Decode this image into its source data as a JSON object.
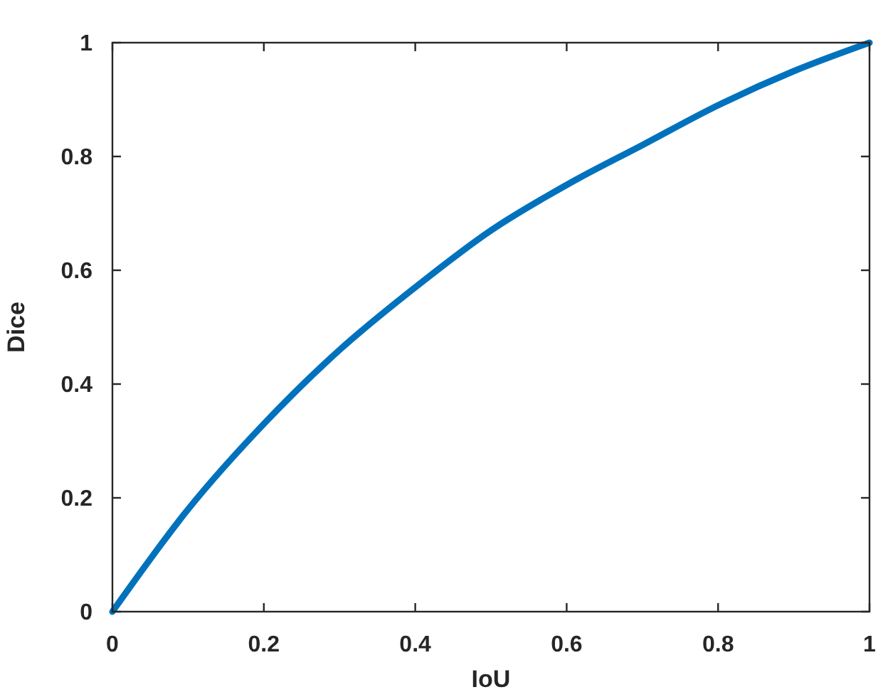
{
  "chart_data": {
    "type": "line",
    "xlabel": "IoU",
    "ylabel": "Dice",
    "x": [
      0,
      0.1,
      0.2,
      0.3,
      0.4,
      0.5,
      0.6,
      0.7,
      0.8,
      0.9,
      1
    ],
    "series": [
      {
        "color": "#0072bd",
        "values": [
          0,
          0.18,
          0.33,
          0.46,
          0.57,
          0.67,
          0.75,
          0.82,
          0.89,
          0.95,
          1
        ]
      }
    ],
    "xlim": [
      0,
      1
    ],
    "ylim": [
      0,
      1
    ],
    "xticks": [
      0,
      0.2,
      0.4,
      0.6,
      0.8,
      1
    ],
    "yticks": [
      0,
      0.2,
      0.4,
      0.6,
      0.8,
      1
    ],
    "line_style": "solid"
  }
}
